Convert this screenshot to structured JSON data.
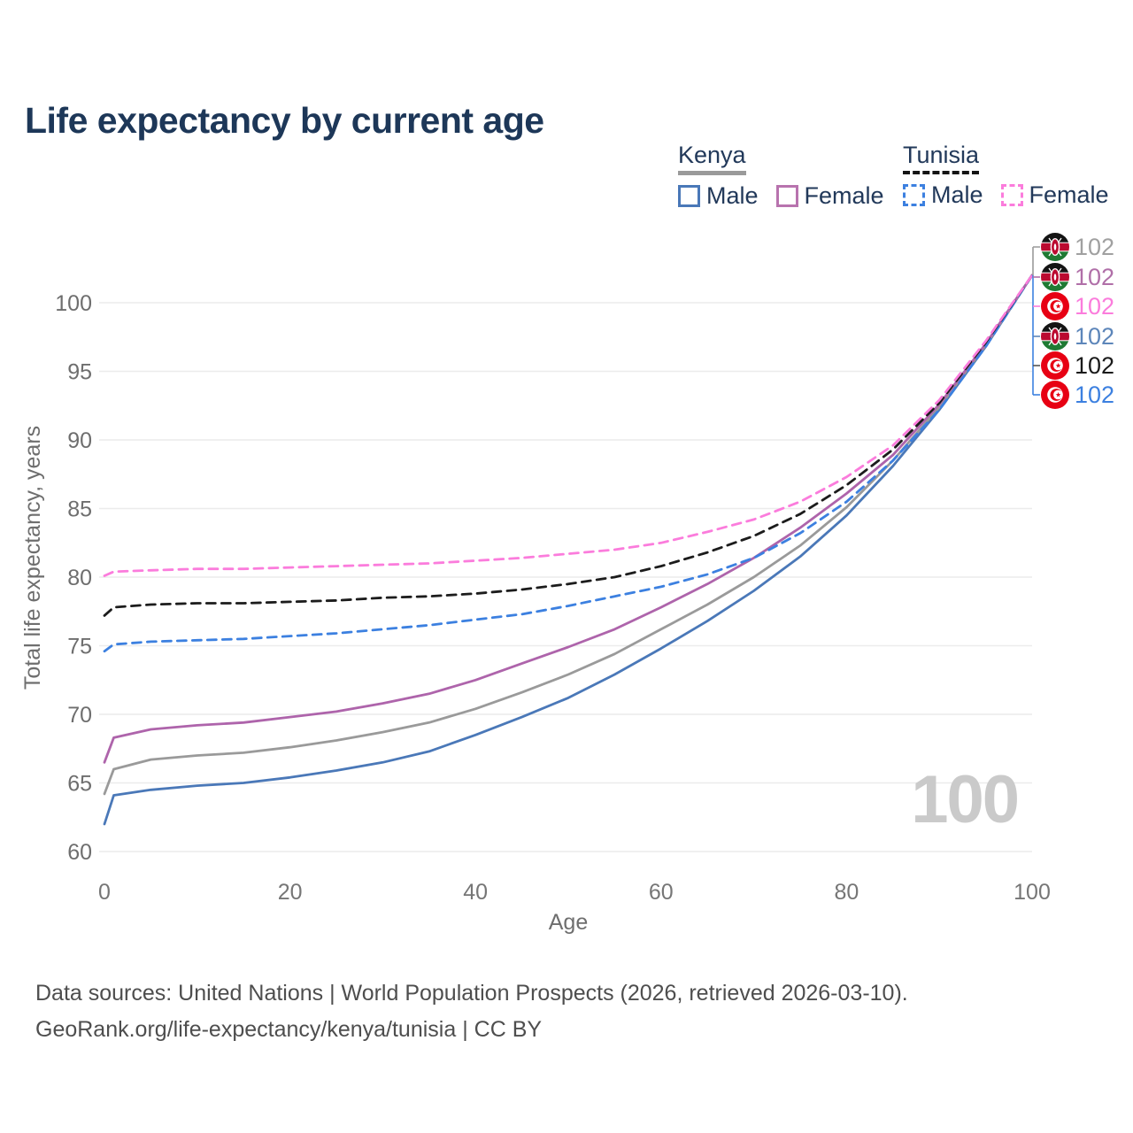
{
  "title": "Life expectancy by current age",
  "watermark": "100",
  "legend": {
    "groups": [
      {
        "label": "Kenya",
        "underline": {
          "style": "solid",
          "color": "#9a9a9a"
        },
        "items": [
          {
            "label": "Male",
            "swatch": {
              "style": "solid",
              "color": "#4a78b8"
            }
          },
          {
            "label": "Female",
            "swatch": {
              "style": "solid",
              "color": "#b873ae"
            }
          }
        ]
      },
      {
        "label": "Tunisia",
        "underline": {
          "style": "dashed",
          "color": "#141414"
        },
        "items": [
          {
            "label": "Male",
            "swatch": {
              "style": "dashed",
              "color": "#3c80e0"
            }
          },
          {
            "label": "Female",
            "swatch": {
              "style": "dashed",
              "color": "#fb7cdc"
            }
          }
        ]
      }
    ]
  },
  "chart_data": {
    "type": "line",
    "title": "Life expectancy by current age",
    "xlabel": "Age",
    "ylabel": "Total life expectancy, years",
    "xlim": [
      0,
      100
    ],
    "ylim": [
      60,
      102
    ],
    "x_ticks": [
      0,
      20,
      40,
      60,
      80,
      100
    ],
    "y_ticks": [
      60,
      65,
      70,
      75,
      80,
      85,
      90,
      95,
      100
    ],
    "grid": "horizontal",
    "legend_position": "top-right",
    "ages": [
      0,
      1,
      5,
      10,
      15,
      20,
      25,
      30,
      35,
      40,
      45,
      50,
      55,
      60,
      65,
      70,
      75,
      80,
      85,
      90,
      95,
      100
    ],
    "series": [
      {
        "name": "Kenya Male",
        "country": "Kenya",
        "sex": "male",
        "style": "solid",
        "color": "#4a78b8",
        "label_row": 3,
        "values": [
          62.0,
          64.1,
          64.5,
          64.8,
          65.0,
          65.4,
          65.9,
          66.5,
          67.3,
          68.5,
          69.8,
          71.2,
          72.9,
          74.8,
          76.8,
          79.0,
          81.5,
          84.5,
          88.1,
          92.2,
          96.8,
          102
        ]
      },
      {
        "name": "Kenya Both sexes",
        "country": "Kenya",
        "sex": "both",
        "style": "solid",
        "color": "#9a9a9a",
        "label_row": 0,
        "values": [
          64.2,
          66.0,
          66.7,
          67.0,
          67.2,
          67.6,
          68.1,
          68.7,
          69.4,
          70.4,
          71.6,
          72.9,
          74.4,
          76.2,
          78.0,
          80.0,
          82.3,
          85.1,
          88.5,
          92.4,
          96.9,
          102
        ]
      },
      {
        "name": "Kenya Female",
        "country": "Kenya",
        "sex": "female",
        "style": "solid",
        "color": "#ae64ab",
        "label_row": 1,
        "values": [
          66.5,
          68.3,
          68.9,
          69.2,
          69.4,
          69.8,
          70.2,
          70.8,
          71.5,
          72.5,
          73.7,
          74.9,
          76.2,
          77.8,
          79.5,
          81.4,
          83.6,
          86.1,
          88.9,
          92.6,
          97.0,
          102
        ]
      },
      {
        "name": "Tunisia Male",
        "country": "Tunisia",
        "sex": "male",
        "style": "dashed",
        "color": "#3c80e0",
        "label_row": 5,
        "values": [
          74.6,
          75.1,
          75.3,
          75.4,
          75.5,
          75.7,
          75.9,
          76.2,
          76.5,
          76.9,
          77.3,
          77.9,
          78.6,
          79.3,
          80.2,
          81.4,
          83.2,
          85.5,
          88.5,
          92.2,
          96.8,
          102
        ]
      },
      {
        "name": "Tunisia Both sexes",
        "country": "Tunisia",
        "sex": "both",
        "style": "dashed",
        "color": "#1c1c1c",
        "label_row": 4,
        "values": [
          77.2,
          77.8,
          78.0,
          78.1,
          78.1,
          78.2,
          78.3,
          78.5,
          78.6,
          78.8,
          79.1,
          79.5,
          80.0,
          80.8,
          81.8,
          83.0,
          84.6,
          86.7,
          89.3,
          92.7,
          97.1,
          102
        ]
      },
      {
        "name": "Tunisia Female",
        "country": "Tunisia",
        "sex": "female",
        "style": "dashed",
        "color": "#fb7cdc",
        "label_row": 2,
        "values": [
          80.1,
          80.4,
          80.5,
          80.6,
          80.6,
          80.7,
          80.8,
          80.9,
          81.0,
          81.2,
          81.4,
          81.7,
          82.0,
          82.5,
          83.3,
          84.2,
          85.5,
          87.3,
          89.6,
          92.9,
          97.2,
          102
        ]
      }
    ],
    "end_labels": {
      "connector_up_color": "#9a9a9a",
      "connector_down_color": "#3c80e0",
      "rows": [
        {
          "flag": "kenya",
          "text": "102",
          "color": "#a0a0a0",
          "series": "Kenya Both sexes"
        },
        {
          "flag": "kenya",
          "text": "102",
          "color": "#b06fa8",
          "series": "Kenya Female"
        },
        {
          "flag": "tunisia",
          "text": "102",
          "color": "#fb7cdc",
          "series": "Tunisia Female"
        },
        {
          "flag": "kenya",
          "text": "102",
          "color": "#5d86ba",
          "series": "Kenya Male"
        },
        {
          "flag": "tunisia",
          "text": "102",
          "color": "#1a1a1a",
          "series": "Tunisia Both sexes"
        },
        {
          "flag": "tunisia",
          "text": "102",
          "color": "#3c80e0",
          "series": "Tunisia Male"
        }
      ]
    }
  },
  "footer": {
    "line1": "Data sources: United Nations | World Population Prospects (2026, retrieved 2026-03-10).",
    "line2": "GeoRank.org/life-expectancy/kenya/tunisia | CC BY"
  }
}
